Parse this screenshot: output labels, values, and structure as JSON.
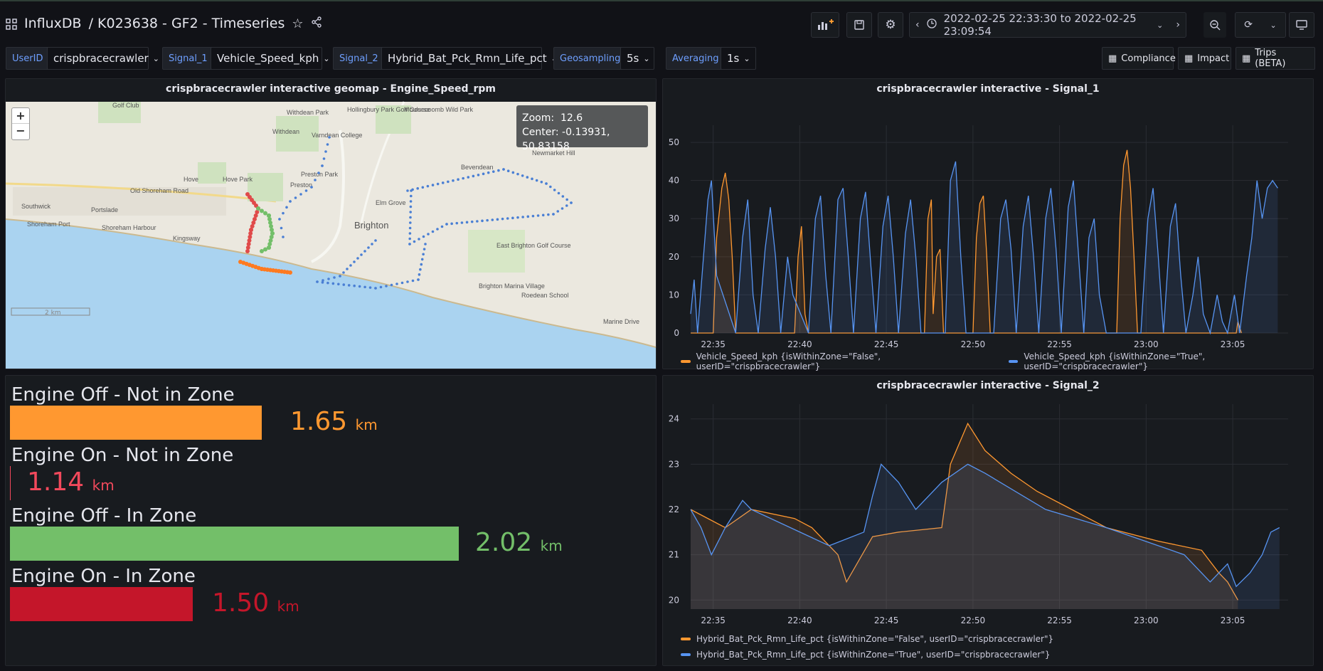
{
  "header": {
    "app": "InfluxDB",
    "dashboard": "/ K023638 - GF2 - Timeseries",
    "time_range": "2022-02-25 22:33:30 to 2022-02-25 23:09:54"
  },
  "variables": [
    {
      "label": "UserID",
      "value": "crispbracecrawler"
    },
    {
      "label": "Signal_1",
      "value": "Vehicle_Speed_kph"
    },
    {
      "label": "Signal_2",
      "value": "Hybrid_Bat_Pck_Rmn_Life_pct"
    },
    {
      "label": "Geosampling",
      "value": "5s"
    },
    {
      "label": "Averaging",
      "value": "1s"
    }
  ],
  "links": [
    "Compliance",
    "Impact",
    "Trips (BETA)"
  ],
  "map_panel": {
    "title": "crispbracecrawler interactive geomap - Engine_Speed_rpm",
    "zoom_label": "Zoom:",
    "zoom": "12.6",
    "center_label": "Center:",
    "center": "-0.13931, 50.83158",
    "scale": "2 km",
    "places": [
      "Golf Club",
      "Withdean Park",
      "Hollingbury Park Golf Course",
      "Moulsecoomb Wild Park",
      "Withdean",
      "Varndean College",
      "Bevendean",
      "Newmarket Hill",
      "Hove Park",
      "Hove",
      "Preston Park",
      "Preston",
      "Southwick",
      "Portslade",
      "Old Shoreham Road",
      "Brighton",
      "Elm Grove",
      "Shoreham Port",
      "Shoreham Harbour",
      "Kingsway",
      "East Brighton Golf Course",
      "Brighton Marina Village",
      "Roedean School",
      "Marine Drive"
    ]
  },
  "stats": [
    {
      "title": "Engine Off - Not in Zone",
      "value": "1.65",
      "unit": "km",
      "color": "#ff9830",
      "fraction": 0.413
    },
    {
      "title": "Engine On - Not in Zone",
      "value": "1.14",
      "unit": "km",
      "color": "#f2495c",
      "fraction": 0.0
    },
    {
      "title": "Engine Off - In Zone",
      "value": "2.02",
      "unit": "km",
      "color": "#73bf69",
      "fraction": 0.735
    },
    {
      "title": "Engine On - In Zone",
      "value": "1.50",
      "unit": "km",
      "color": "#c4162a",
      "fraction": 0.3
    }
  ],
  "chart_data": [
    {
      "type": "line",
      "title": "crispbracecrawler interactive - Signal_1",
      "x_ticks": [
        "22:35",
        "22:40",
        "22:45",
        "22:50",
        "22:55",
        "23:00",
        "23:05"
      ],
      "y_ticks": [
        "0",
        "10",
        "20",
        "30",
        "40",
        "50"
      ],
      "ylim": [
        0,
        53
      ],
      "series": [
        {
          "name": "Vehicle_Speed_kph {isWithinZone=\"False\", userID=\"crispbracecrawler\"}",
          "color": "#ff9830",
          "points": [
            [
              0.0,
              0
            ],
            [
              1.3,
              0
            ],
            [
              1.5,
              25
            ],
            [
              1.8,
              38
            ],
            [
              2.0,
              42
            ],
            [
              2.2,
              35
            ],
            [
              2.4,
              20
            ],
            [
              2.6,
              0
            ],
            [
              6.0,
              0
            ],
            [
              6.2,
              20
            ],
            [
              6.4,
              28
            ],
            [
              6.6,
              5
            ],
            [
              6.8,
              0
            ],
            [
              13.5,
              0
            ],
            [
              13.7,
              30
            ],
            [
              13.9,
              35
            ],
            [
              14.0,
              5
            ],
            [
              14.2,
              20
            ],
            [
              14.4,
              22
            ],
            [
              14.6,
              0
            ],
            [
              16.3,
              0
            ],
            [
              16.5,
              25
            ],
            [
              16.7,
              34
            ],
            [
              16.9,
              36
            ],
            [
              17.1,
              20
            ],
            [
              17.3,
              0
            ],
            [
              24.6,
              0
            ],
            [
              24.8,
              30
            ],
            [
              25.0,
              44
            ],
            [
              25.2,
              48
            ],
            [
              25.4,
              38
            ],
            [
              25.6,
              20
            ],
            [
              25.8,
              0
            ],
            [
              31.5,
              0
            ],
            [
              31.6,
              3
            ],
            [
              31.8,
              0
            ]
          ]
        },
        {
          "name": "Vehicle_Speed_kph {isWithinZone=\"True\", userID=\"crispbracecrawler\"}",
          "color": "#5794f2",
          "points": [
            [
              0.0,
              5
            ],
            [
              0.2,
              14
            ],
            [
              0.4,
              0
            ],
            [
              1.0,
              35
            ],
            [
              1.2,
              40
            ],
            [
              1.5,
              15
            ],
            [
              2.6,
              0
            ],
            [
              3.0,
              25
            ],
            [
              3.3,
              35
            ],
            [
              3.6,
              10
            ],
            [
              3.9,
              0
            ],
            [
              4.3,
              22
            ],
            [
              4.6,
              33
            ],
            [
              4.9,
              20
            ],
            [
              5.2,
              0
            ],
            [
              5.6,
              20
            ],
            [
              5.9,
              10
            ],
            [
              6.8,
              0
            ],
            [
              7.2,
              30
            ],
            [
              7.5,
              36
            ],
            [
              7.8,
              15
            ],
            [
              8.1,
              0
            ],
            [
              8.5,
              35
            ],
            [
              8.8,
              38
            ],
            [
              9.1,
              20
            ],
            [
              9.4,
              0
            ],
            [
              9.8,
              30
            ],
            [
              10.1,
              37
            ],
            [
              10.4,
              18
            ],
            [
              10.7,
              0
            ],
            [
              11.1,
              28
            ],
            [
              11.4,
              36
            ],
            [
              11.7,
              20
            ],
            [
              12.0,
              0
            ],
            [
              12.4,
              26
            ],
            [
              12.7,
              35
            ],
            [
              13.0,
              20
            ],
            [
              13.3,
              0
            ],
            [
              14.7,
              0
            ],
            [
              15.0,
              40
            ],
            [
              15.3,
              45
            ],
            [
              15.6,
              20
            ],
            [
              15.9,
              0
            ],
            [
              17.5,
              0
            ],
            [
              17.9,
              30
            ],
            [
              18.2,
              35
            ],
            [
              18.5,
              22
            ],
            [
              18.8,
              0
            ],
            [
              19.2,
              28
            ],
            [
              19.5,
              36
            ],
            [
              19.8,
              20
            ],
            [
              20.1,
              0
            ],
            [
              20.5,
              30
            ],
            [
              20.8,
              38
            ],
            [
              21.1,
              22
            ],
            [
              21.4,
              0
            ],
            [
              21.8,
              33
            ],
            [
              22.1,
              40
            ],
            [
              22.4,
              20
            ],
            [
              22.7,
              0
            ],
            [
              23.0,
              25
            ],
            [
              23.3,
              30
            ],
            [
              23.6,
              10
            ],
            [
              24.0,
              0
            ],
            [
              26.0,
              0
            ],
            [
              26.4,
              30
            ],
            [
              26.7,
              38
            ],
            [
              27.0,
              20
            ],
            [
              27.3,
              0
            ],
            [
              27.7,
              28
            ],
            [
              28.0,
              34
            ],
            [
              28.3,
              15
            ],
            [
              28.6,
              0
            ],
            [
              29.0,
              10
            ],
            [
              29.3,
              20
            ],
            [
              29.6,
              5
            ],
            [
              30.0,
              0
            ],
            [
              30.4,
              10
            ],
            [
              30.7,
              3
            ],
            [
              31.0,
              0
            ],
            [
              31.4,
              10
            ],
            [
              31.7,
              0
            ],
            [
              32.1,
              15
            ],
            [
              32.4,
              25
            ],
            [
              32.7,
              40
            ],
            [
              33.0,
              30
            ],
            [
              33.3,
              38
            ],
            [
              33.6,
              40
            ],
            [
              33.9,
              38
            ]
          ]
        }
      ]
    },
    {
      "type": "line",
      "title": "crispbracecrawler interactive - Signal_2",
      "x_ticks": [
        "22:35",
        "22:40",
        "22:45",
        "22:50",
        "22:55",
        "23:00",
        "23:05"
      ],
      "y_ticks": [
        "20",
        "21",
        "22",
        "23",
        "24"
      ],
      "ylim": [
        19.8,
        24.2
      ],
      "series": [
        {
          "name": "Hybrid_Bat_Pck_Rmn_Life_pct {isWithinZone=\"False\", userID=\"crispbracecrawler\"}",
          "color": "#ff9830",
          "points": [
            [
              0.0,
              22.0
            ],
            [
              2.0,
              21.6
            ],
            [
              3.5,
              22.0
            ],
            [
              6.0,
              21.8
            ],
            [
              7.0,
              21.6
            ],
            [
              8.5,
              21.0
            ],
            [
              9.0,
              20.4
            ],
            [
              10.5,
              21.4
            ],
            [
              12.0,
              21.5
            ],
            [
              14.5,
              21.6
            ],
            [
              15.0,
              23.0
            ],
            [
              16.0,
              23.9
            ],
            [
              17.0,
              23.3
            ],
            [
              18.5,
              22.8
            ],
            [
              20.0,
              22.4
            ],
            [
              22.0,
              22.0
            ],
            [
              24.0,
              21.6
            ],
            [
              27.0,
              21.3
            ],
            [
              29.5,
              21.1
            ],
            [
              30.5,
              20.6
            ],
            [
              31.0,
              20.4
            ],
            [
              31.6,
              20.0
            ]
          ]
        },
        {
          "name": "Hybrid_Bat_Pck_Rmn_Life_pct {isWithinZone=\"True\", userID=\"crispbracecrawler\"}",
          "color": "#5794f2",
          "points": [
            [
              0.0,
              22.0
            ],
            [
              0.6,
              21.6
            ],
            [
              1.2,
              21.0
            ],
            [
              2.0,
              21.6
            ],
            [
              3.0,
              22.2
            ],
            [
              3.5,
              22.0
            ],
            [
              8.0,
              21.2
            ],
            [
              10.0,
              21.5
            ],
            [
              10.5,
              22.3
            ],
            [
              11.0,
              23.0
            ],
            [
              12.0,
              22.6
            ],
            [
              13.0,
              22.0
            ],
            [
              14.5,
              22.6
            ],
            [
              16.0,
              23.0
            ],
            [
              17.0,
              22.8
            ],
            [
              20.5,
              22.0
            ],
            [
              24.0,
              21.6
            ],
            [
              28.5,
              21.0
            ],
            [
              30.0,
              20.4
            ],
            [
              31.0,
              20.8
            ],
            [
              31.5,
              20.3
            ],
            [
              32.3,
              20.6
            ],
            [
              33.0,
              21.0
            ],
            [
              33.5,
              21.5
            ],
            [
              34.0,
              21.6
            ]
          ]
        }
      ]
    }
  ]
}
